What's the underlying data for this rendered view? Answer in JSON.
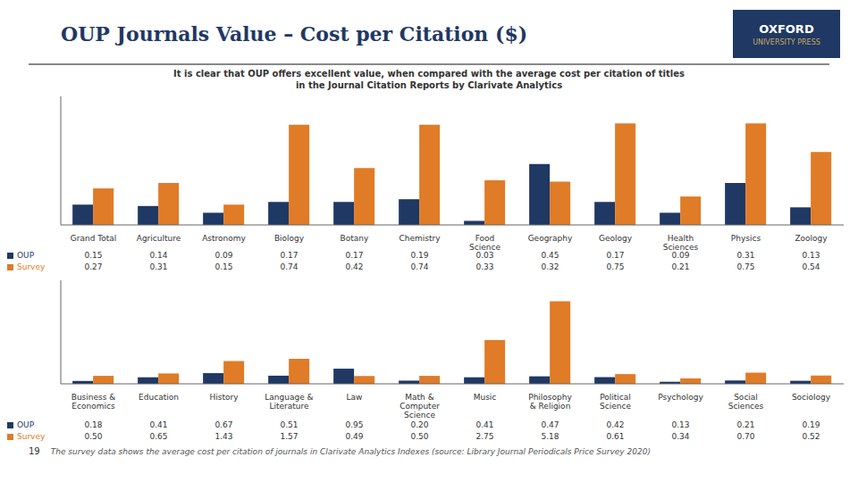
{
  "chart_data": [
    {
      "type": "bar",
      "title": "OUP Journals Value – Cost per Citation ($)",
      "subtitle": "It is clear that OUP offers excellent value, when compared with the average cost per citation of titles\nin the Journal Citation Reports by Clarivate Analytics",
      "annotations": [
        "OXFORD",
        "UNIVERSITY PRESS"
      ],
      "categories": [
        "Grand Total",
        "Agriculture",
        "Astronomy",
        "Biology",
        "Botany",
        "Chemistry",
        "Food\nScience",
        "Geography",
        "Geology",
        "Health\nSciences",
        "Physics",
        "Zoology"
      ],
      "series": [
        {
          "name": "OUP",
          "color": "#1f3864",
          "values": [
            0.15,
            0.14,
            0.09,
            0.17,
            0.17,
            0.19,
            0.03,
            0.45,
            0.17,
            0.09,
            0.31,
            0.13
          ],
          "value_labels": [
            "0.15",
            "0.14",
            "0.09",
            "0.17",
            "0.17",
            "0.19",
            "0.03",
            "0.45",
            "0.17",
            "0.09",
            "0.31",
            "0.13"
          ]
        },
        {
          "name": "Survey",
          "color": "#e07b27",
          "values": [
            0.27,
            0.31,
            0.15,
            0.74,
            0.42,
            0.74,
            0.33,
            0.32,
            0.75,
            0.21,
            0.75,
            0.54
          ],
          "value_labels": [
            "0.27",
            "0.31",
            "0.15",
            "0.74",
            "0.42",
            "0.74",
            "0.33",
            "0.32",
            "0.75",
            "0.21",
            "0.75",
            "0.54"
          ]
        }
      ],
      "ylim": [
        0,
        0.95
      ],
      "grid": false,
      "tick_labels": "x",
      "data_labels": true
    },
    {
      "type": "bar",
      "annotations": [
        "19",
        "The survey data shows the average cost per citation of journals in Clarivate Analytics Indexes (source: Library Journal Periodicals Price Survey 2020)"
      ],
      "categories": [
        "Business &\nEconomics",
        "Education",
        "History",
        "Language &\nLiterature",
        "Law",
        "Math &\nComputer\nScience",
        "Music",
        "Philosophy\n& Religion",
        "Political\nScience",
        "Psychology",
        "Social\nSciences",
        "Sociology"
      ],
      "series": [
        {
          "name": "OUP",
          "color": "#1f3864",
          "values": [
            0.18,
            0.41,
            0.67,
            0.51,
            0.95,
            0.2,
            0.41,
            0.47,
            0.42,
            0.13,
            0.21,
            0.19
          ],
          "value_labels": [
            "0.18",
            "0.41",
            "0.67",
            "0.51",
            "0.95",
            "0.20",
            "0.41",
            "0.47",
            "0.42",
            "0.13",
            "0.21",
            "0.19"
          ]
        },
        {
          "name": "Survey",
          "color": "#e07b27",
          "values": [
            0.5,
            0.65,
            1.43,
            1.57,
            0.49,
            0.5,
            2.75,
            5.18,
            0.61,
            0.34,
            0.7,
            0.52
          ],
          "value_labels": [
            "0.50",
            "0.65",
            "1.43",
            "1.57",
            "0.49",
            "0.50",
            "2.75",
            "5.18",
            "0.61",
            "0.34",
            "0.70",
            "0.52"
          ]
        }
      ],
      "ylim": [
        0,
        6.5
      ],
      "grid": false,
      "tick_labels": "x",
      "data_labels": true
    }
  ]
}
